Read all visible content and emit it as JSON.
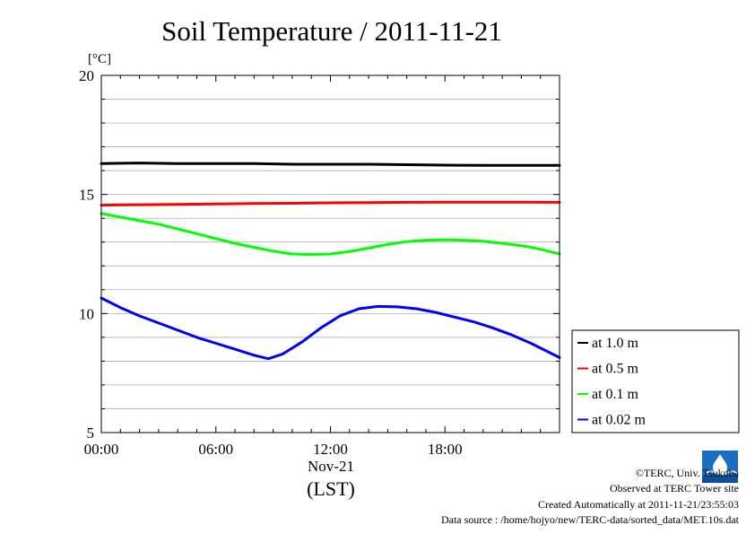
{
  "chart_data": {
    "type": "line",
    "title": "Soil Temperature / 2011-11-21",
    "ylabel": "[°C]",
    "xlabel_date": "Nov-21",
    "xlabel": "(LST)",
    "xlim": [
      0,
      24
    ],
    "ylim": [
      5,
      20
    ],
    "x_ticks": [
      {
        "value": 0,
        "label": "00:00"
      },
      {
        "value": 6,
        "label": "06:00"
      },
      {
        "value": 12,
        "label": "12:00"
      },
      {
        "value": 18,
        "label": "18:00"
      }
    ],
    "y_ticks": [
      {
        "value": 5,
        "label": "5"
      },
      {
        "value": 10,
        "label": "10"
      },
      {
        "value": 15,
        "label": "15"
      },
      {
        "value": 20,
        "label": "20"
      }
    ],
    "grid": true,
    "legend_position": "right",
    "series": [
      {
        "name": "at 1.0 m",
        "color": "#000000",
        "x": [
          0,
          2,
          4,
          6,
          8,
          10,
          12,
          14,
          16,
          18,
          20,
          22,
          24
        ],
        "y": [
          16.3,
          16.32,
          16.3,
          16.3,
          16.3,
          16.27,
          16.27,
          16.27,
          16.25,
          16.23,
          16.22,
          16.22,
          16.22
        ]
      },
      {
        "name": "at 0.5 m",
        "color": "#ff0000",
        "x": [
          0,
          2,
          4,
          6,
          8,
          10,
          12,
          14,
          16,
          18,
          20,
          22,
          24
        ],
        "y": [
          14.55,
          14.57,
          14.58,
          14.6,
          14.62,
          14.63,
          14.65,
          14.66,
          14.67,
          14.68,
          14.68,
          14.68,
          14.67
        ]
      },
      {
        "name": "at 0.1 m",
        "color": "#00ff00",
        "x": [
          0,
          1,
          2,
          3,
          4,
          5,
          6,
          7,
          8,
          9,
          10,
          11,
          12,
          13,
          14,
          15,
          16,
          17,
          18,
          19,
          20,
          21,
          22,
          23,
          24
        ],
        "y": [
          14.2,
          14.05,
          13.9,
          13.75,
          13.55,
          13.35,
          13.15,
          12.95,
          12.78,
          12.62,
          12.5,
          12.48,
          12.5,
          12.6,
          12.75,
          12.9,
          13.02,
          13.08,
          13.1,
          13.08,
          13.03,
          12.95,
          12.85,
          12.7,
          12.5
        ]
      },
      {
        "name": "at 0.02 m",
        "color": "#0000ff",
        "x": [
          0,
          1,
          2,
          3,
          4,
          5,
          6,
          7,
          8,
          8.75,
          9.5,
          10.5,
          11.5,
          12.5,
          13.5,
          14.5,
          15.5,
          16.5,
          17.5,
          18.5,
          19.5,
          20.5,
          21.5,
          22.5,
          24
        ],
        "y": [
          10.65,
          10.25,
          9.9,
          9.6,
          9.3,
          9.0,
          8.75,
          8.5,
          8.25,
          8.1,
          8.3,
          8.8,
          9.4,
          9.9,
          10.2,
          10.3,
          10.28,
          10.2,
          10.05,
          9.85,
          9.65,
          9.4,
          9.1,
          8.75,
          8.15
        ]
      }
    ]
  },
  "credits": {
    "copyright": "©TERC, Univ. Tsukuba",
    "site": "Observed at TERC Tower site",
    "created": "Created Automatically at 2011-11-21/23:55:03",
    "source": "Data source : /home/hojyo/new/TERC-data/sorted_data/MET.10s.dat"
  },
  "logo_icon": "terc-logo-icon"
}
